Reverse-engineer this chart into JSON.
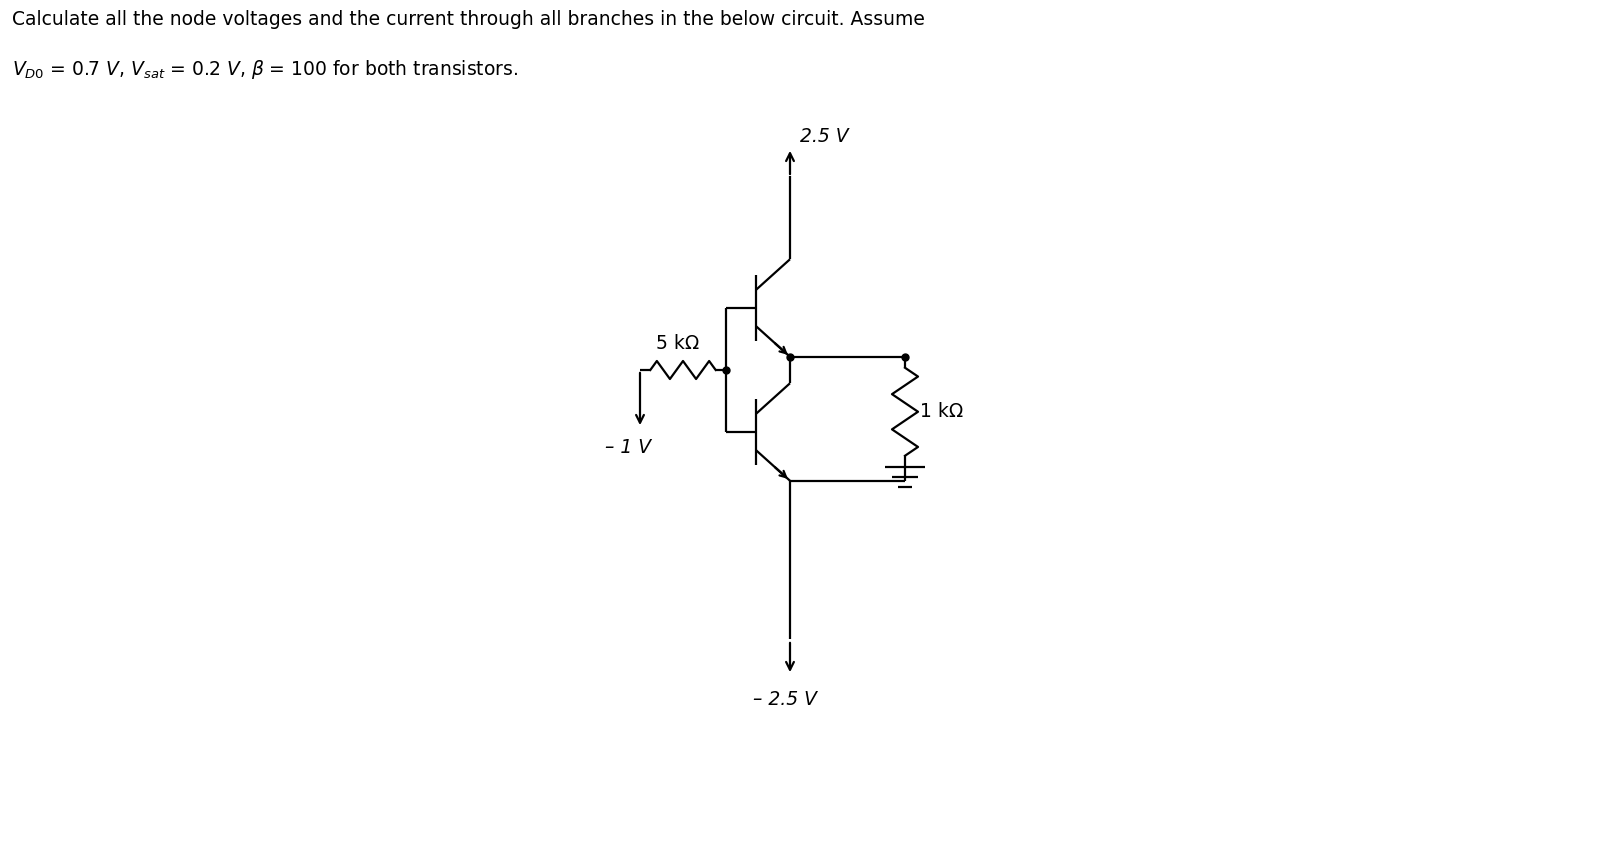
{
  "bg_color": "#ffffff",
  "line_color": "#000000",
  "fig_width": 16.04,
  "fig_height": 8.5,
  "vcc_label": "2.5 V",
  "vee_label": "– 2.5 V",
  "v1_label": "– 1 V",
  "r1_label": "5 kΩ",
  "r2_label": "1 kΩ",
  "title_line1": "Calculate all the node voltages and the current through all branches in the below circuit.",
  "title_suffix": " Assume",
  "title_line2": "$V_{D0}$ = 0.7 $V$, $V_{sat}$ = 0.2 $V$, $\\beta$ = 100 for both transistors.",
  "font_size": 13.5
}
